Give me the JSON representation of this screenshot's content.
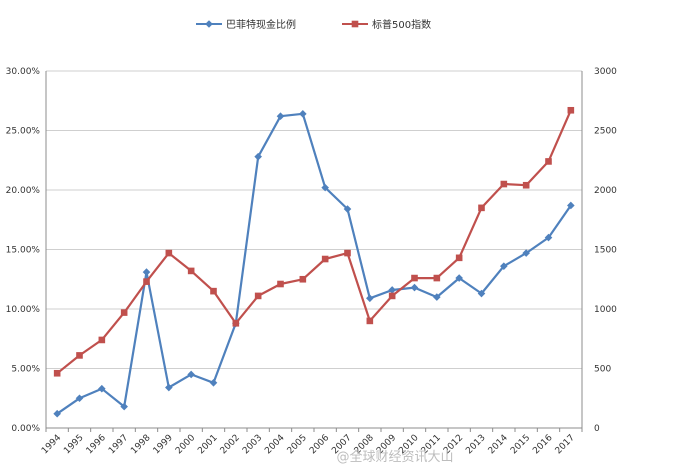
{
  "chart_data": {
    "type": "line",
    "title": "",
    "xlabel": "",
    "ylabel": "",
    "y2label": "",
    "legend_position": "top",
    "grid": true,
    "categories": [
      "1994",
      "1995",
      "1996",
      "1997",
      "1998",
      "1999",
      "2000",
      "2001",
      "2002",
      "2003",
      "2004",
      "2005",
      "2006",
      "2007",
      "2008",
      "2009",
      "2010",
      "2011",
      "2012",
      "2013",
      "2014",
      "2015",
      "2016",
      "2017"
    ],
    "ylim": [
      0,
      0.3
    ],
    "y2lim": [
      0,
      3000
    ],
    "yticks": [
      "0.00%",
      "5.00%",
      "10.00%",
      "15.00%",
      "20.00%",
      "25.00%",
      "30.00%"
    ],
    "y2ticks": [
      "0",
      "500",
      "1000",
      "1500",
      "2000",
      "2500",
      "3000"
    ],
    "series": [
      {
        "name": "巴菲特现金比例",
        "axis": "left",
        "color": "#4f81bd",
        "marker": "diamond",
        "values": [
          0.012,
          0.025,
          0.033,
          0.018,
          0.131,
          0.034,
          0.045,
          0.038,
          0.088,
          0.228,
          0.262,
          0.264,
          0.202,
          0.184,
          0.109,
          0.116,
          0.118,
          0.11,
          0.126,
          0.113,
          0.136,
          0.147,
          0.16,
          0.187
        ]
      },
      {
        "name": "标普500指数",
        "axis": "right",
        "color": "#c0504d",
        "marker": "square",
        "values": [
          460,
          610,
          740,
          970,
          1230,
          1470,
          1320,
          1150,
          880,
          1110,
          1210,
          1250,
          1420,
          1470,
          900,
          1110,
          1260,
          1260,
          1430,
          1850,
          2050,
          2040,
          2240,
          2670
        ]
      }
    ]
  },
  "watermark": {
    "text": "@全球财经资讯大山"
  }
}
